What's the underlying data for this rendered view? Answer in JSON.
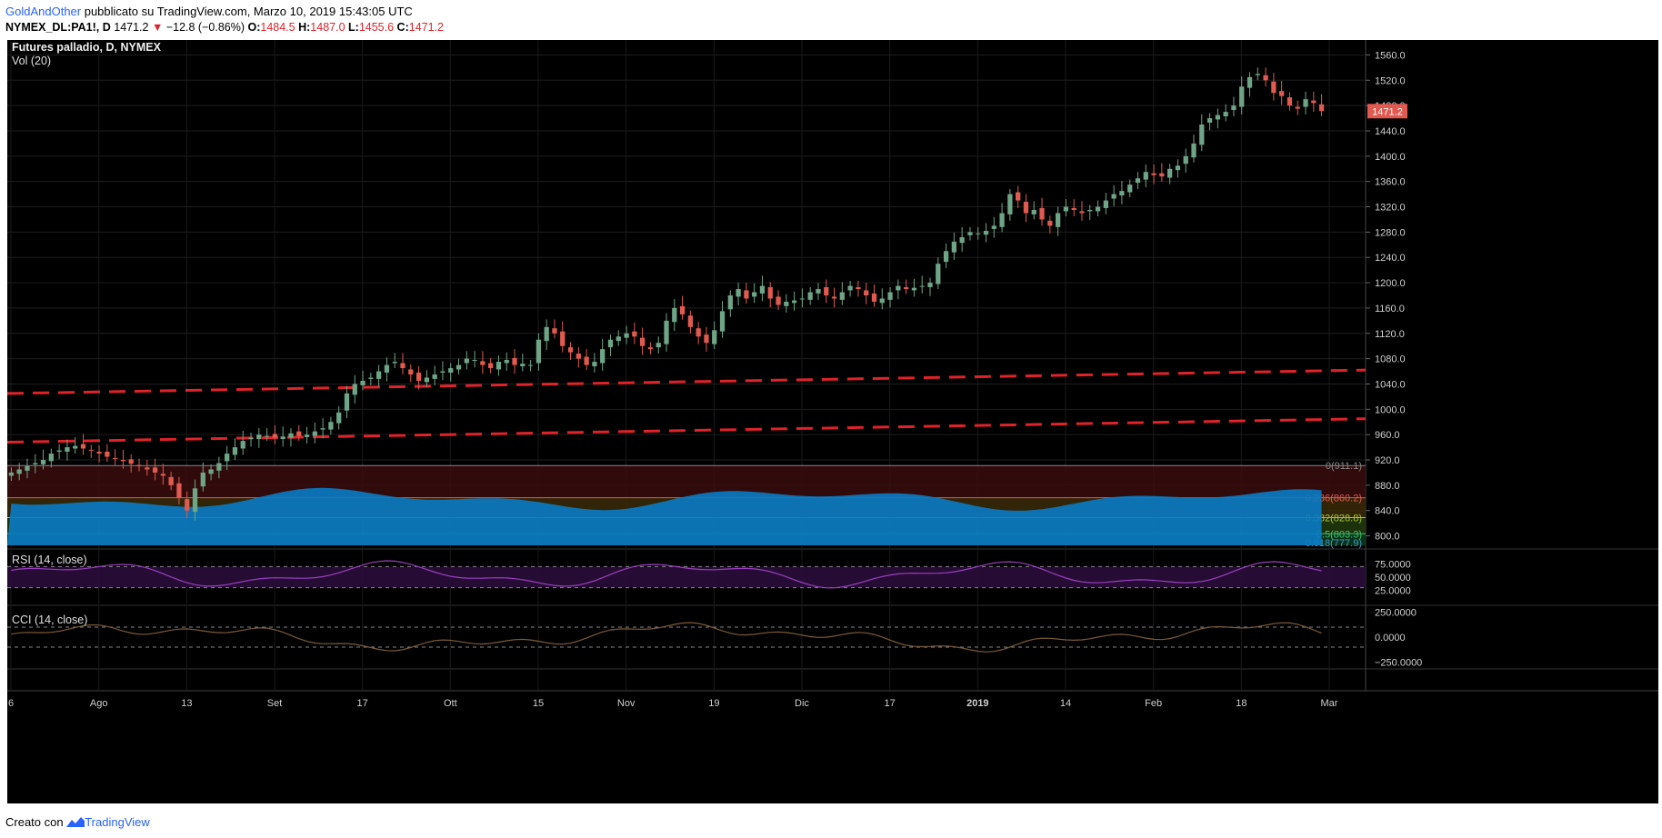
{
  "header": {
    "author": "GoldAndOther",
    "published_text": " pubblicato su TradingView.com, Marzo 10, 2019 15:43:05 UTC",
    "symbol": "NYMEX_DL:PA1!, D",
    "last": "1471.2",
    "change": "−12.8 (−0.86%)",
    "o_label": "O:",
    "o_value": "1484.5",
    "h_label": "H:",
    "h_value": "1487.0",
    "l_label": "L:",
    "l_value": "1455.6",
    "c_label": "C:",
    "c_value": "1471.2"
  },
  "legend": {
    "title": "Futures palladio, D, NYMEX",
    "vol": "Vol (20)",
    "rsi": "RSI (14, close)",
    "cci": "CCI (14, close)"
  },
  "price_tag": "1471.2",
  "footer": {
    "created_with": "Creato con",
    "brand": "TradingView"
  },
  "colors": {
    "up": "#6fa587",
    "down": "#e05a50",
    "background": "#000000",
    "volume": "#0a7bc4",
    "rsi": "#9a3fbf",
    "cci": "#7a5a3a",
    "trendline": "#e0222a",
    "brand": "#2962ff"
  },
  "chart_data": {
    "type": "candlestick",
    "price_axis": {
      "ticks": [
        "1560.0",
        "1520.0",
        "1480.0",
        "1440.0",
        "1400.0",
        "1360.0",
        "1320.0",
        "1280.0",
        "1240.0",
        "1200.0",
        "1160.0",
        "1120.0",
        "1080.0",
        "1040.0",
        "1000.0",
        "960.0",
        "920.0",
        "880.0",
        "840.0",
        "800.0"
      ],
      "range": [
        785,
        1575
      ]
    },
    "x_axis_ticks": [
      "6",
      "Ago",
      "13",
      "Set",
      "17",
      "Ott",
      "15",
      "Nov",
      "19",
      "Dic",
      "17",
      "2019",
      "14",
      "Feb",
      "18",
      "Mar"
    ],
    "fibonacci": [
      {
        "level": "0",
        "value": "911.1",
        "label": "0(911.1)"
      },
      {
        "level": "0.236",
        "value": "860.2",
        "label": "0.236(860.2)"
      },
      {
        "level": "0.382",
        "value": "828.8",
        "label": "0.382(828.8)"
      },
      {
        "level": "0.5",
        "value": "803.3",
        "label": "0.5(803.3)"
      },
      {
        "level": "0.618",
        "value": "777.9",
        "label": "0.618(777.9)"
      }
    ],
    "rsi_axis": [
      "75.0000",
      "50.0000",
      "25.0000"
    ],
    "cci_axis": [
      "250.0000",
      "0.0000",
      "−250.0000"
    ],
    "closes": [
      900,
      905,
      910,
      915,
      920,
      930,
      935,
      940,
      942,
      938,
      935,
      930,
      925,
      922,
      918,
      914,
      910,
      905,
      900,
      895,
      880,
      860,
      840,
      875,
      900,
      905,
      915,
      930,
      940,
      950,
      955,
      960,
      958,
      955,
      957,
      962,
      958,
      960,
      965,
      970,
      980,
      995,
      1025,
      1040,
      1045,
      1050,
      1060,
      1070,
      1075,
      1065,
      1055,
      1045,
      1050,
      1055,
      1060,
      1065,
      1070,
      1080,
      1078,
      1070,
      1065,
      1075,
      1078,
      1070,
      1072,
      1070,
      1110,
      1130,
      1120,
      1100,
      1090,
      1080,
      1070,
      1075,
      1095,
      1110,
      1115,
      1120,
      1115,
      1100,
      1095,
      1105,
      1140,
      1160,
      1150,
      1130,
      1115,
      1105,
      1125,
      1155,
      1180,
      1190,
      1175,
      1185,
      1195,
      1175,
      1165,
      1170,
      1172,
      1175,
      1185,
      1190,
      1180,
      1175,
      1185,
      1195,
      1190,
      1180,
      1170,
      1175,
      1185,
      1195,
      1190,
      1192,
      1195,
      1200,
      1230,
      1250,
      1265,
      1272,
      1280,
      1278,
      1282,
      1290,
      1310,
      1340,
      1330,
      1310,
      1315,
      1300,
      1290,
      1310,
      1320,
      1315,
      1310,
      1315,
      1320,
      1330,
      1340,
      1345,
      1355,
      1365,
      1375,
      1370,
      1368,
      1380,
      1385,
      1400,
      1420,
      1450,
      1460,
      1465,
      1470,
      1480,
      1510,
      1525,
      1530,
      1520,
      1500,
      1495,
      1480,
      1475,
      1490,
      1484,
      1471.2
    ]
  }
}
